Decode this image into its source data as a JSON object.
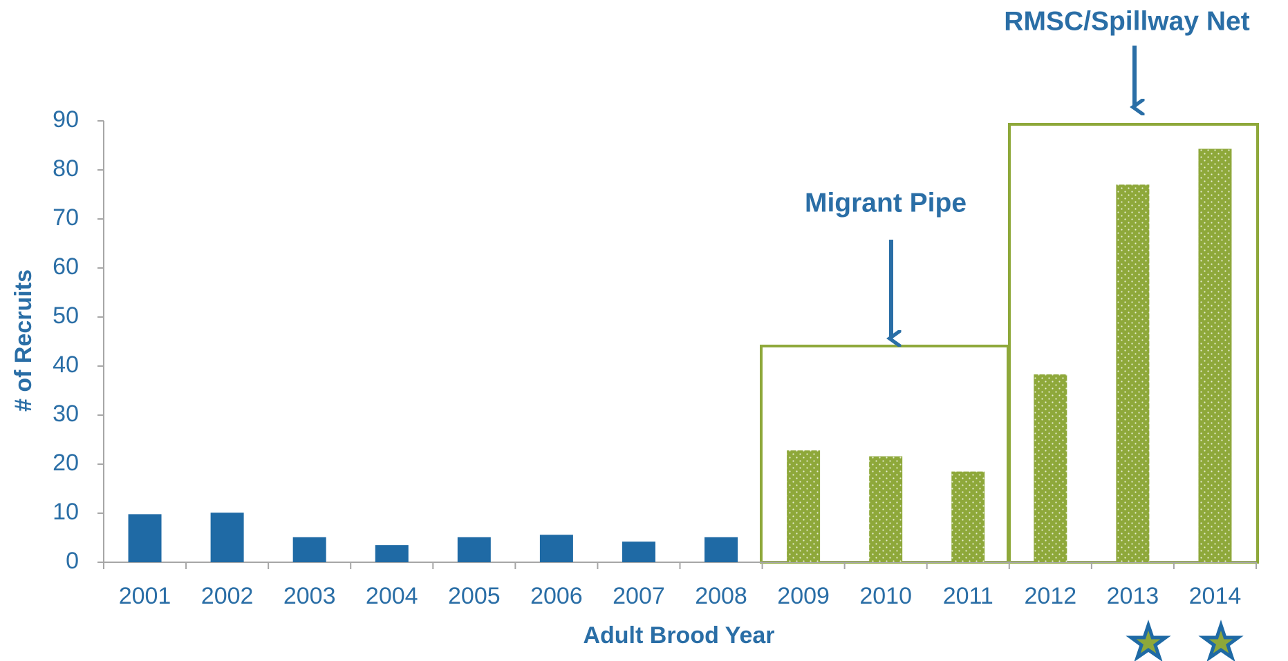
{
  "chart_data": {
    "type": "bar",
    "x_label": "Adult Brood Year",
    "y_label": "# of Recruits",
    "categories": [
      "2001",
      "2002",
      "2003",
      "2004",
      "2005",
      "2006",
      "2007",
      "2008",
      "2009",
      "2010",
      "2011",
      "2012",
      "2013",
      "2014"
    ],
    "values": [
      9.8,
      10.1,
      5.1,
      3.5,
      5.1,
      5.6,
      4.2,
      5.1,
      22.8,
      21.6,
      18.5,
      38.3,
      77,
      84.3
    ],
    "colors": [
      "#1f6aa5",
      "#1f6aa5",
      "#1f6aa5",
      "#1f6aa5",
      "#1f6aa5",
      "#1f6aa5",
      "#1f6aa5",
      "#1f6aa5",
      "#8ea83a",
      "#8ea83a",
      "#8ea83a",
      "#8ea83a",
      "#8ea83a",
      "#8ea83a"
    ],
    "patterns": [
      "solid",
      "solid",
      "solid",
      "solid",
      "solid",
      "solid",
      "solid",
      "solid",
      "dots",
      "dots",
      "dots",
      "dots",
      "dots",
      "dots"
    ],
    "ylim": [
      0,
      90
    ],
    "yticks": [
      0,
      10,
      20,
      30,
      40,
      50,
      60,
      70,
      80,
      90
    ],
    "grid": false,
    "annotations": [
      "Migrant Pipe",
      "RMSC/Spillway Net"
    ]
  }
}
